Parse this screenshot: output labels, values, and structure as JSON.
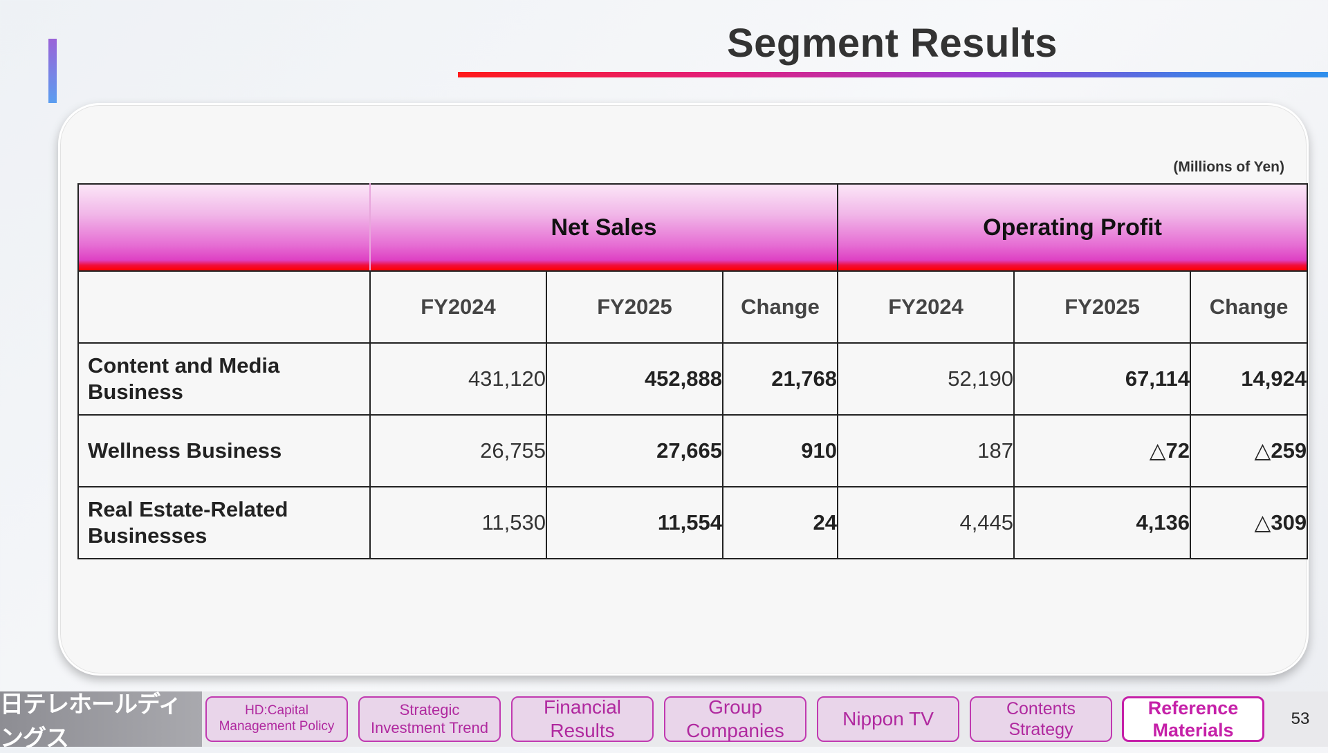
{
  "page": {
    "title": "Segment Results",
    "unit_note": "(Millions of Yen)",
    "page_number": "53"
  },
  "table": {
    "group_headers": [
      "Net Sales",
      "Operating Profit"
    ],
    "sub_headers": [
      "FY2024",
      "FY2025",
      "Change",
      "FY2024",
      "FY2025",
      "Change"
    ],
    "rows": [
      {
        "label_line1": "Content and Media",
        "label_line2": "Business",
        "values": [
          "431,120",
          "452,888",
          "21,768",
          "52,190",
          "67,114",
          "14,924"
        ]
      },
      {
        "label_line1": "Wellness Business",
        "label_line2": "",
        "values": [
          "26,755",
          "27,665",
          "910",
          "187",
          "△72",
          "△259"
        ]
      },
      {
        "label_line1": "Real Estate-Related",
        "label_line2": "Businesses",
        "values": [
          "11,530",
          "11,554",
          "24",
          "4,445",
          "4,136",
          "△309"
        ]
      }
    ]
  },
  "footer": {
    "logo_text": "日テレホールディングス",
    "nav": [
      {
        "line1": "HD:Capital",
        "line2": "Management  Policy"
      },
      {
        "line1": "Strategic",
        "line2": "Investment Trend"
      },
      {
        "line1": "Financial",
        "line2": "Results"
      },
      {
        "line1": "Group",
        "line2": "Companies"
      },
      {
        "line1": "Nippon TV",
        "line2": ""
      },
      {
        "line1": "Contents",
        "line2": "Strategy"
      },
      {
        "line1": "Reference",
        "line2": "Materials"
      }
    ]
  },
  "colors": {
    "accent_magenta": "#c520a8",
    "header_gradient_end": "#ff0000",
    "title_line_start": "#ff1a1a",
    "title_line_end": "#2f8fec"
  }
}
